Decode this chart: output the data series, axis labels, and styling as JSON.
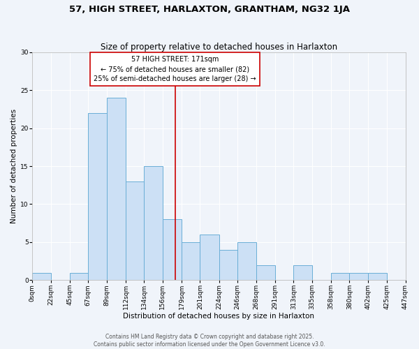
{
  "title": "57, HIGH STREET, HARLAXTON, GRANTHAM, NG32 1JA",
  "subtitle": "Size of property relative to detached houses in Harlaxton",
  "xlabel": "Distribution of detached houses by size in Harlaxton",
  "ylabel": "Number of detached properties",
  "bin_edges": [
    0,
    22,
    45,
    67,
    89,
    112,
    134,
    156,
    179,
    201,
    224,
    246,
    268,
    291,
    313,
    335,
    358,
    380,
    402,
    425,
    447
  ],
  "bin_labels": [
    "0sqm",
    "22sqm",
    "45sqm",
    "67sqm",
    "89sqm",
    "112sqm",
    "134sqm",
    "156sqm",
    "179sqm",
    "201sqm",
    "224sqm",
    "246sqm",
    "268sqm",
    "291sqm",
    "313sqm",
    "335sqm",
    "358sqm",
    "380sqm",
    "402sqm",
    "425sqm",
    "447sqm"
  ],
  "counts": [
    1,
    0,
    1,
    22,
    24,
    13,
    15,
    8,
    5,
    6,
    4,
    5,
    2,
    0,
    2,
    0,
    1,
    1,
    1,
    0
  ],
  "bar_facecolor": "#cce0f5",
  "bar_edgecolor": "#6aaed6",
  "vline_x": 171,
  "vline_color": "#cc0000",
  "ylim": [
    0,
    30
  ],
  "yticks": [
    0,
    5,
    10,
    15,
    20,
    25,
    30
  ],
  "annotation_box_text_line1": "57 HIGH STREET: 171sqm",
  "annotation_box_text_line2": "← 75% of detached houses are smaller (82)",
  "annotation_box_text_line3": "25% of semi-detached houses are larger (28) →",
  "annotation_box_edgecolor": "#cc0000",
  "annotation_box_facecolor": "#ffffff",
  "bg_color": "#f0f4fa",
  "grid_color": "#ffffff",
  "footer_line1": "Contains HM Land Registry data © Crown copyright and database right 2025.",
  "footer_line2": "Contains public sector information licensed under the Open Government Licence v3.0.",
  "title_fontsize": 9.5,
  "subtitle_fontsize": 8.5,
  "axis_label_fontsize": 7.5,
  "tick_fontsize": 6.5,
  "annotation_fontsize": 7,
  "footer_fontsize": 5.5
}
